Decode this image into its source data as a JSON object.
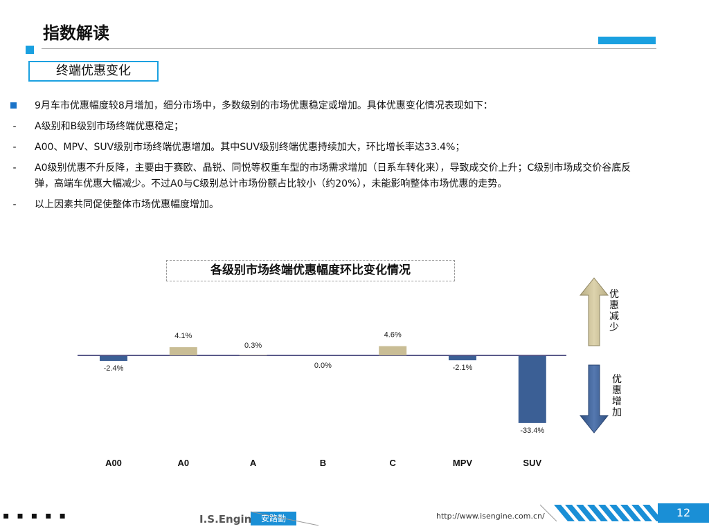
{
  "header": {
    "title": "指数解读",
    "subtitle": "终端优惠变化"
  },
  "bullets": [
    {
      "marker": "■",
      "text": "9月车市优惠幅度较8月增加，细分市场中，多数级别的市场优惠稳定或增加。具体优惠变化情况表现如下："
    },
    {
      "marker": "-",
      "text": "A级别和B级别市场终端优惠稳定；"
    },
    {
      "marker": "-",
      "text": "A00、MPV、SUV级别市场终端优惠增加。其中SUV级别终端优惠持续加大，环比增长率达33.4%；"
    },
    {
      "marker": "-",
      "text": "A0级别优惠不升反降，主要由于赛欧、晶锐、同悦等权重车型的市场需求增加（日系车转化来），导致成交价上升；C级别市场成交价谷底反弹，高端车优惠大幅减少。不过A0与C级别总计市场份额占比较小（约20%），未能影响整体市场优惠的走势。"
    },
    {
      "marker": "-",
      "text": "以上因素共同促使整体市场优惠幅度增加。"
    }
  ],
  "chart_data": {
    "type": "bar",
    "title": "各级别市场终端优惠幅度环比变化情况",
    "categories": [
      "A00",
      "A0",
      "A",
      "B",
      "C",
      "MPV",
      "SUV"
    ],
    "values": [
      -2.4,
      4.1,
      0.3,
      0.0,
      4.6,
      -2.1,
      -33.4
    ],
    "value_labels": [
      "-2.4%",
      "4.1%",
      "0.3%",
      "0.0%",
      "4.6%",
      "-2.1%",
      "-33.4%"
    ],
    "colors": {
      "positive": "#c9bd95",
      "negative": "#3b5f95",
      "axis": "#5a5a8a"
    },
    "ylim": [
      -35,
      10
    ],
    "grid": false
  },
  "arrows": {
    "up_label": "优惠减少",
    "down_label": "优惠增加"
  },
  "footer": {
    "dots": "▪ ▪ ▪ ▪ ▪",
    "logo": "I.S.Engine",
    "badge": "安路勤",
    "url": "http://www.isengine.com.cn/",
    "page": "12"
  }
}
